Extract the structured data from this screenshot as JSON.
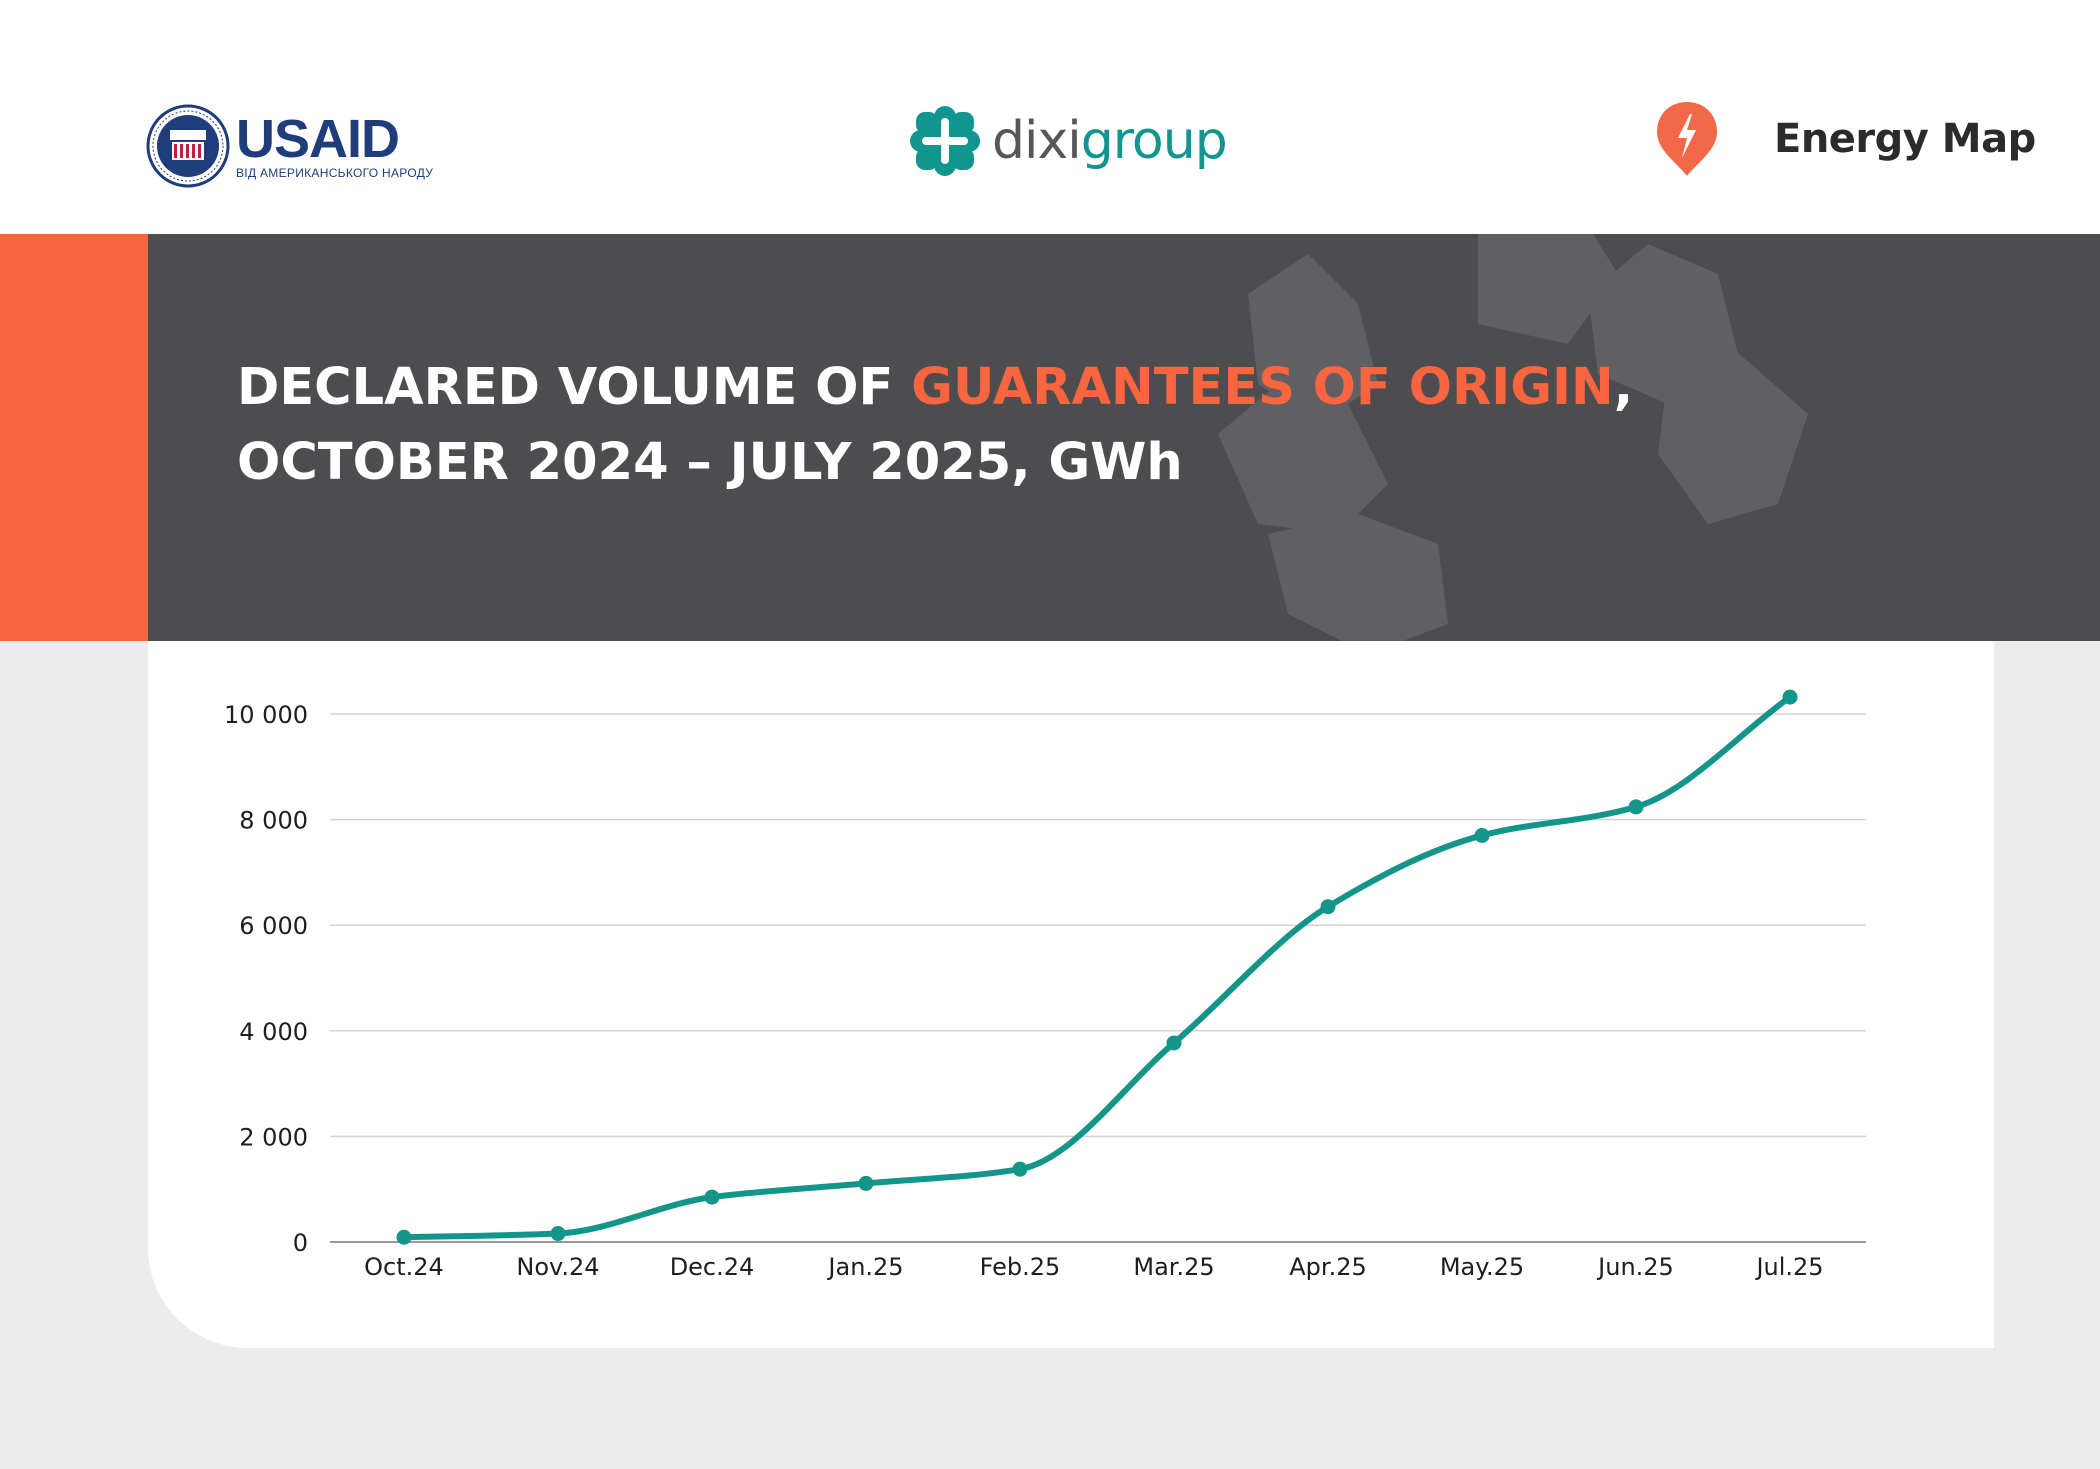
{
  "header": {
    "usaid_name": "USAID",
    "usaid_tagline": "ВІД АМЕРИКАНСЬКОГО НАРОДУ",
    "dixi_part1": "dixi",
    "dixi_part2": "group",
    "energy_map": "Energy Map"
  },
  "title": {
    "line1_prefix": "DECLARED VOLUME OF ",
    "line1_highlight": "GUARANTEES OF ORIGIN",
    "line1_suffix": ",",
    "line2": "OCTOBER 2024 – JULY 2025, GWh"
  },
  "colors": {
    "accent": "#f8653f",
    "banner": "#4d4d50",
    "line": "#13958a",
    "grid": "#d4d4d4"
  },
  "chart_data": {
    "type": "line",
    "title": "DECLARED VOLUME OF GUARANTEES OF ORIGIN, OCTOBER 2024 – JULY 2025, GWh",
    "categories": [
      "Oct.24",
      "Nov.24",
      "Dec.24",
      "Jan.25",
      "Feb.25",
      "Mar.25",
      "Apr.25",
      "May.25",
      "Jun.25",
      "Jul.25"
    ],
    "series": [
      {
        "name": "Declared volume, GWh",
        "values": [
          90,
          160,
          850,
          1110,
          1380,
          3770,
          6350,
          7700,
          8240,
          10320
        ]
      }
    ],
    "ylim": [
      0,
      10000
    ],
    "yticks": [
      0,
      2000,
      4000,
      6000,
      8000,
      10000
    ],
    "ytick_labels": [
      "0",
      "2 000",
      "4 000",
      "6 000",
      "8 000",
      "10 000"
    ],
    "xlabel": "",
    "ylabel": "",
    "grid": true
  }
}
